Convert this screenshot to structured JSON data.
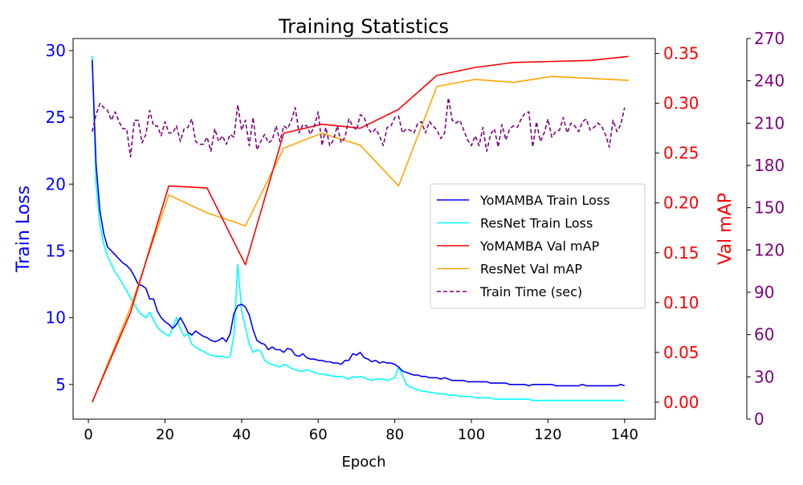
{
  "chart_data": {
    "type": "line",
    "title": "Training Statistics",
    "xlabel": "Epoch",
    "ylabel_left": "Train Loss",
    "ylabel_right": "Val mAP",
    "xlim": [
      -4,
      148
    ],
    "ylim_loss": [
      2.4,
      30.9
    ],
    "ylim_map": [
      -0.017,
      0.365
    ],
    "ylim_time": [
      0,
      270
    ],
    "xticks": [
      "0",
      "20",
      "40",
      "60",
      "80",
      "100",
      "120",
      "140"
    ],
    "yticks_loss": [
      "5",
      "10",
      "15",
      "20",
      "25",
      "30"
    ],
    "yticks_map": [
      "0.00",
      "0.05",
      "0.10",
      "0.15",
      "0.20",
      "0.25",
      "0.30",
      "0.35"
    ],
    "yticks_time": [
      "0",
      "30",
      "60",
      "90",
      "120",
      "150",
      "180",
      "210",
      "240",
      "270"
    ],
    "colors": {
      "loss_axis": "#0000ff",
      "map_axis": "#ff0000",
      "time_axis": "#800080",
      "yomamba_loss": "#0000ff",
      "resnet_loss": "#00ffff",
      "yomamba_map": "#ff0000",
      "resnet_map": "#ffa500",
      "train_time": "#800080"
    },
    "legend_position": "center-right",
    "grid": false,
    "series": [
      {
        "name": "YoMAMBA Train Loss",
        "axis": "loss",
        "style": "solid",
        "x": [
          1,
          2,
          3,
          4,
          5,
          6,
          7,
          8,
          9,
          10,
          11,
          12,
          13,
          14,
          15,
          16,
          17,
          18,
          19,
          20,
          21,
          22,
          23,
          24,
          25,
          26,
          27,
          28,
          29,
          30,
          31,
          32,
          33,
          34,
          35,
          36,
          37,
          38,
          39,
          40,
          41,
          42,
          43,
          44,
          45,
          46,
          47,
          48,
          49,
          50,
          51,
          52,
          53,
          54,
          55,
          56,
          57,
          58,
          59,
          60,
          61,
          62,
          63,
          64,
          65,
          66,
          67,
          68,
          69,
          70,
          71,
          72,
          73,
          74,
          75,
          76,
          77,
          78,
          79,
          80,
          81,
          82,
          83,
          84,
          85,
          86,
          87,
          88,
          89,
          90,
          91,
          92,
          93,
          94,
          95,
          96,
          97,
          98,
          99,
          100,
          101,
          102,
          103,
          104,
          105,
          106,
          107,
          108,
          109,
          110,
          111,
          112,
          113,
          114,
          115,
          116,
          117,
          118,
          119,
          120,
          121,
          122,
          123,
          124,
          125,
          126,
          127,
          128,
          129,
          130,
          131,
          132,
          133,
          134,
          135,
          136,
          137,
          138,
          139,
          140
        ],
        "y": [
          29.3,
          21.5,
          18.0,
          16.3,
          15.3,
          15.0,
          14.7,
          14.4,
          14.1,
          13.9,
          13.6,
          13.1,
          12.5,
          12.4,
          12.2,
          11.4,
          11.4,
          10.5,
          10.0,
          9.7,
          9.5,
          9.2,
          9.5,
          10.0,
          9.5,
          8.9,
          8.7,
          9.0,
          8.8,
          8.6,
          8.5,
          8.3,
          8.2,
          8.3,
          8.5,
          8.2,
          8.8,
          10.3,
          10.9,
          11.0,
          10.8,
          10.2,
          9.1,
          8.3,
          8.1,
          8.0,
          7.6,
          7.8,
          7.6,
          7.6,
          7.4,
          7.7,
          7.6,
          7.2,
          7.1,
          7.3,
          7.0,
          6.9,
          6.9,
          6.8,
          6.8,
          6.7,
          6.7,
          6.6,
          6.6,
          6.5,
          6.8,
          6.8,
          7.3,
          7.2,
          7.4,
          7.0,
          6.9,
          6.7,
          6.8,
          6.6,
          6.7,
          6.6,
          6.6,
          6.5,
          6.3,
          6.0,
          5.9,
          5.8,
          5.7,
          5.7,
          5.6,
          5.6,
          5.5,
          5.5,
          5.5,
          5.4,
          5.5,
          5.4,
          5.3,
          5.3,
          5.3,
          5.3,
          5.2,
          5.2,
          5.2,
          5.2,
          5.2,
          5.2,
          5.1,
          5.1,
          5.1,
          5.1,
          5.1,
          5.0,
          5.0,
          5.0,
          5.0,
          5.0,
          4.9,
          5.0,
          5.0,
          5.0,
          5.0,
          5.0,
          5.0,
          4.9,
          4.9,
          4.9,
          4.9,
          4.9,
          4.9,
          4.9,
          5.0,
          4.9,
          4.9,
          4.9,
          4.9,
          4.9,
          4.9,
          4.9,
          4.9,
          4.9,
          5.0,
          4.9
        ]
      },
      {
        "name": "ResNet Train Loss",
        "axis": "loss",
        "style": "solid",
        "x": [
          1,
          2,
          3,
          4,
          5,
          6,
          7,
          8,
          9,
          10,
          11,
          12,
          13,
          14,
          15,
          16,
          17,
          18,
          19,
          20,
          21,
          22,
          23,
          24,
          25,
          26,
          27,
          28,
          29,
          30,
          31,
          32,
          33,
          34,
          35,
          36,
          37,
          38,
          39,
          40,
          41,
          42,
          43,
          44,
          45,
          46,
          47,
          48,
          49,
          50,
          51,
          52,
          53,
          54,
          55,
          56,
          57,
          58,
          59,
          60,
          61,
          62,
          63,
          64,
          65,
          66,
          67,
          68,
          69,
          70,
          71,
          72,
          73,
          74,
          75,
          76,
          77,
          78,
          79,
          80,
          81,
          82,
          83,
          84,
          85,
          86,
          87,
          88,
          89,
          90,
          91,
          92,
          93,
          94,
          95,
          96,
          97,
          98,
          99,
          100,
          101,
          102,
          103,
          104,
          105,
          106,
          107,
          108,
          109,
          110,
          111,
          112,
          113,
          114,
          115,
          116,
          117,
          118,
          119,
          120,
          121,
          122,
          123,
          124,
          125,
          126,
          127,
          128,
          129,
          130,
          131,
          132,
          133,
          134,
          135,
          136,
          137,
          138,
          139,
          140
        ],
        "y": [
          29.6,
          20.0,
          17.0,
          15.5,
          14.6,
          14.0,
          13.4,
          13.0,
          12.5,
          12.0,
          11.5,
          11.0,
          10.5,
          10.2,
          10.0,
          10.4,
          9.8,
          9.3,
          9.0,
          8.8,
          8.6,
          9.2,
          10.0,
          9.2,
          8.6,
          8.8,
          8.0,
          7.8,
          7.6,
          7.5,
          7.3,
          7.2,
          7.1,
          7.1,
          7.1,
          7.0,
          7.1,
          8.7,
          14.0,
          10.5,
          9.3,
          8.0,
          7.4,
          7.6,
          7.5,
          6.8,
          6.6,
          6.5,
          6.4,
          6.3,
          6.5,
          6.4,
          6.2,
          6.1,
          6.0,
          6.0,
          6.1,
          6.0,
          5.9,
          5.8,
          5.8,
          5.7,
          5.7,
          5.6,
          5.6,
          5.6,
          5.5,
          5.4,
          5.6,
          5.5,
          5.6,
          5.5,
          5.4,
          5.3,
          5.4,
          5.4,
          5.4,
          5.3,
          5.4,
          5.5,
          6.3,
          5.7,
          5.0,
          4.8,
          4.7,
          4.6,
          4.5,
          4.5,
          4.4,
          4.4,
          4.3,
          4.3,
          4.3,
          4.2,
          4.2,
          4.2,
          4.1,
          4.1,
          4.1,
          4.1,
          4.0,
          4.0,
          4.0,
          4.0,
          4.0,
          3.9,
          3.9,
          3.9,
          3.9,
          3.9,
          3.9,
          3.9,
          3.9,
          3.9,
          3.9,
          3.8,
          3.8,
          3.8,
          3.8,
          3.8,
          3.8,
          3.8,
          3.8,
          3.8,
          3.8,
          3.8,
          3.8,
          3.8,
          3.8,
          3.8,
          3.8,
          3.8,
          3.8,
          3.8,
          3.8,
          3.8,
          3.8,
          3.8,
          3.8,
          3.8
        ]
      },
      {
        "name": "YoMAMBA Val mAP",
        "axis": "map",
        "style": "solid",
        "x": [
          1,
          11,
          21,
          31,
          41,
          51,
          61,
          71,
          81,
          91,
          101,
          111,
          121,
          131,
          141
        ],
        "y": [
          0.0,
          0.09,
          0.217,
          0.215,
          0.138,
          0.27,
          0.279,
          0.275,
          0.294,
          0.328,
          0.336,
          0.341,
          0.342,
          0.343,
          0.347
        ]
      },
      {
        "name": "ResNet Val mAP",
        "axis": "map",
        "style": "solid",
        "x": [
          1,
          11,
          21,
          31,
          41,
          51,
          61,
          71,
          81,
          91,
          101,
          111,
          121,
          131,
          141
        ],
        "y": [
          0.0,
          0.095,
          0.208,
          0.19,
          0.177,
          0.255,
          0.27,
          0.258,
          0.217,
          0.317,
          0.324,
          0.321,
          0.327,
          0.325,
          0.323
        ]
      },
      {
        "name": "Train Time (sec)",
        "axis": "time",
        "style": "dashed",
        "x": [
          1,
          2,
          3,
          4,
          5,
          6,
          7,
          8,
          9,
          10,
          11,
          12,
          13,
          14,
          15,
          16,
          17,
          18,
          19,
          20,
          21,
          22,
          23,
          24,
          25,
          26,
          27,
          28,
          29,
          30,
          31,
          32,
          33,
          34,
          35,
          36,
          37,
          38,
          39,
          40,
          41,
          42,
          43,
          44,
          45,
          46,
          47,
          48,
          49,
          50,
          51,
          52,
          53,
          54,
          55,
          56,
          57,
          58,
          59,
          60,
          61,
          62,
          63,
          64,
          65,
          66,
          67,
          68,
          69,
          70,
          71,
          72,
          73,
          74,
          75,
          76,
          77,
          78,
          79,
          80,
          81,
          82,
          83,
          84,
          85,
          86,
          87,
          88,
          89,
          90,
          91,
          92,
          93,
          94,
          95,
          96,
          97,
          98,
          99,
          100,
          101,
          102,
          103,
          104,
          105,
          106,
          107,
          108,
          109,
          110,
          111,
          112,
          113,
          114,
          115,
          116,
          117,
          118,
          119,
          120,
          121,
          122,
          123,
          124,
          125,
          126,
          127,
          128,
          129,
          130,
          131,
          132,
          133,
          134,
          135,
          136,
          137,
          138,
          139,
          140
        ],
        "y": [
          204,
          216,
          224,
          221,
          219,
          212,
          218,
          211,
          206,
          206,
          186,
          212,
          212,
          196,
          202,
          219,
          208,
          208,
          201,
          211,
          203,
          203,
          208,
          197,
          206,
          207,
          213,
          197,
          195,
          195,
          200,
          190,
          206,
          197,
          201,
          195,
          202,
          200,
          223,
          205,
          212,
          194,
          214,
          191,
          197,
          202,
          196,
          198,
          208,
          197,
          208,
          206,
          212,
          221,
          203,
          209,
          208,
          202,
          208,
          218,
          194,
          207,
          194,
          198,
          208,
          196,
          200,
          213,
          208,
          205,
          216,
          214,
          206,
          203,
          206,
          201,
          194,
          207,
          208,
          214,
          215,
          203,
          206,
          205,
          203,
          210,
          211,
          203,
          211,
          208,
          205,
          199,
          203,
          228,
          212,
          210,
          212,
          205,
          198,
          194,
          201,
          194,
          207,
          190,
          202,
          206,
          193,
          209,
          198,
          206,
          208,
          207,
          213,
          217,
          218,
          193,
          211,
          197,
          203,
          213,
          200,
          204,
          205,
          214,
          203,
          210,
          208,
          204,
          211,
          213,
          205,
          207,
          210,
          208,
          202,
          193,
          212,
          204,
          209,
          221
        ]
      }
    ]
  }
}
